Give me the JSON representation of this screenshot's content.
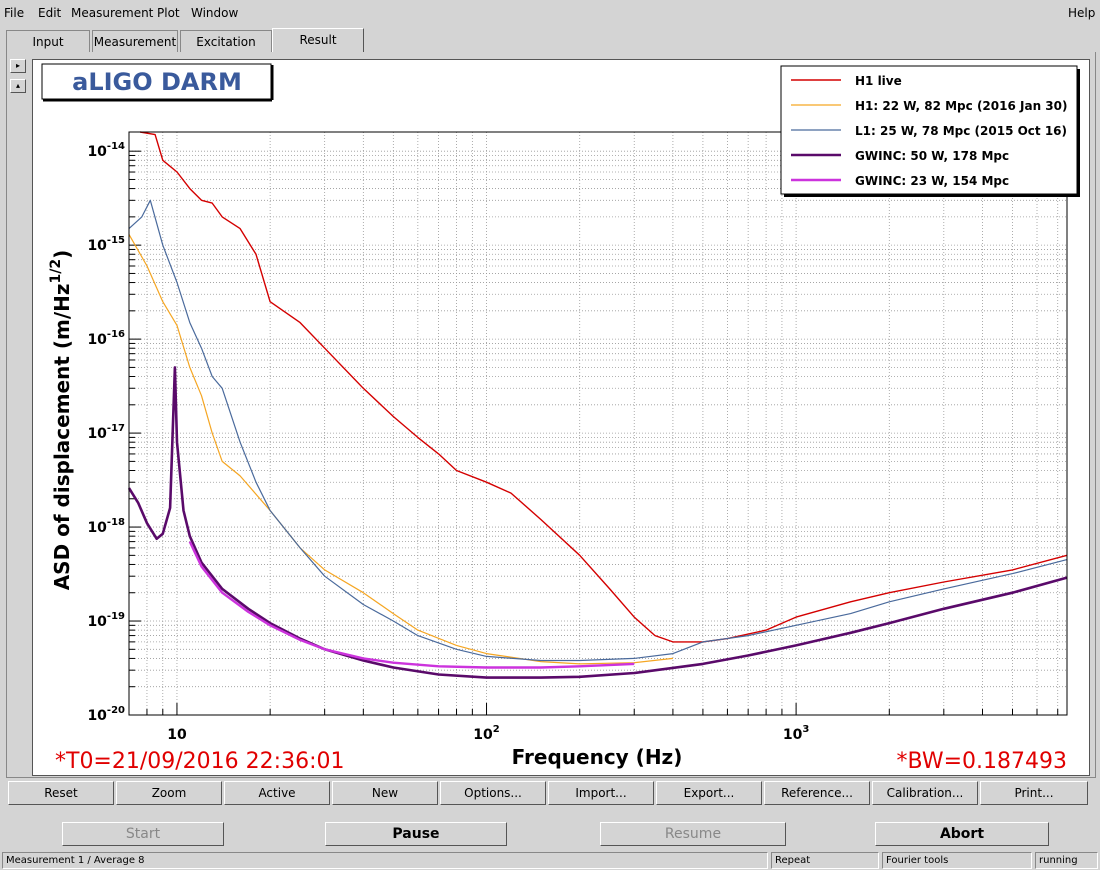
{
  "menu": {
    "file": "File",
    "edit": "Edit",
    "measurement": "Measurement",
    "plot": "Plot",
    "window": "Window",
    "help": "Help"
  },
  "tabs": [
    "Input",
    "Measurement",
    "Excitation",
    "Result"
  ],
  "active_tab": "Result",
  "plot_title": "aLIGO DARM",
  "toolbar": [
    "Reset",
    "Zoom",
    "Active",
    "New",
    "Options...",
    "Import...",
    "Export...",
    "Reference...",
    "Calibration...",
    "Print..."
  ],
  "controls": {
    "start": "Start",
    "pause": "Pause",
    "resume": "Resume",
    "abort": "Abort"
  },
  "status": {
    "left": "Measurement 1 / Average 8",
    "repeat": "Repeat",
    "fourier": "Fourier tools",
    "state": "running"
  },
  "chart_data": {
    "type": "line",
    "xlabel": "Frequency (Hz)",
    "ylabel": "ASD of displacement (m/Hz^1/2)",
    "xscale": "log",
    "yscale": "log",
    "xlim": [
      7,
      7500
    ],
    "ylim": [
      1e-20,
      1.6e-14
    ],
    "x_ticks": [
      "10",
      "10^2",
      "10^3"
    ],
    "y_ticks": [
      "10^-14",
      "10^-15",
      "10^-16",
      "10^-17",
      "10^-18",
      "10^-19",
      "10^-20"
    ],
    "grid": true,
    "legend_position": "top-right",
    "annotations": {
      "t0": "*T0=21/09/2016 22:36:01",
      "bw": "*BW=0.187493"
    },
    "series": [
      {
        "name": "H1 live",
        "color": "#d40000",
        "width": 1.4,
        "points": [
          [
            7.6,
            1.6e-14
          ],
          [
            8.5,
            1.5e-14
          ],
          [
            9,
            8e-15
          ],
          [
            10,
            6e-15
          ],
          [
            11,
            4e-15
          ],
          [
            12,
            3e-15
          ],
          [
            13,
            2.8e-15
          ],
          [
            14,
            2e-15
          ],
          [
            16,
            1.5e-15
          ],
          [
            18,
            8e-16
          ],
          [
            20,
            2.5e-16
          ],
          [
            25,
            1.5e-16
          ],
          [
            30,
            8e-17
          ],
          [
            40,
            3e-17
          ],
          [
            50,
            1.5e-17
          ],
          [
            60,
            9e-18
          ],
          [
            70,
            6e-18
          ],
          [
            80,
            4e-18
          ],
          [
            100,
            3e-18
          ],
          [
            120,
            2.3e-18
          ],
          [
            150,
            1.2e-18
          ],
          [
            200,
            5e-19
          ],
          [
            250,
            2.2e-19
          ],
          [
            300,
            1.1e-19
          ],
          [
            350,
            7e-20
          ],
          [
            400,
            6e-20
          ],
          [
            500,
            6e-20
          ],
          [
            600,
            6.5e-20
          ],
          [
            800,
            8e-20
          ],
          [
            1000,
            1.1e-19
          ],
          [
            1500,
            1.6e-19
          ],
          [
            2000,
            2e-19
          ],
          [
            3000,
            2.6e-19
          ],
          [
            5000,
            3.5e-19
          ],
          [
            7500,
            5e-19
          ]
        ]
      },
      {
        "name": "H1: 22 W, 82 Mpc (2016 Jan 30)",
        "color": "#f5a623",
        "width": 1.2,
        "points": [
          [
            7,
            1.3e-15
          ],
          [
            8,
            6e-16
          ],
          [
            9,
            2.5e-16
          ],
          [
            10,
            1.4e-16
          ],
          [
            11,
            5e-17
          ],
          [
            12,
            2.5e-17
          ],
          [
            13,
            1e-17
          ],
          [
            14,
            5e-18
          ],
          [
            16,
            3.5e-18
          ],
          [
            20,
            1.5e-18
          ],
          [
            25,
            6e-19
          ],
          [
            30,
            3.5e-19
          ],
          [
            40,
            2e-19
          ],
          [
            50,
            1.2e-19
          ],
          [
            60,
            8e-20
          ],
          [
            80,
            5.5e-20
          ],
          [
            100,
            4.5e-20
          ],
          [
            150,
            3.7e-20
          ],
          [
            200,
            3.5e-20
          ],
          [
            300,
            3.6e-20
          ],
          [
            400,
            4e-20
          ]
        ]
      },
      {
        "name": "L1: 25 W, 78 Mpc (2015 Oct 16)",
        "color": "#4a6a9c",
        "width": 1.2,
        "points": [
          [
            7,
            1.5e-15
          ],
          [
            7.7,
            2e-15
          ],
          [
            8.2,
            3e-15
          ],
          [
            9,
            1e-15
          ],
          [
            10,
            4e-16
          ],
          [
            11,
            1.5e-16
          ],
          [
            12,
            8e-17
          ],
          [
            13,
            4e-17
          ],
          [
            14,
            3e-17
          ],
          [
            16,
            8e-18
          ],
          [
            18,
            3e-18
          ],
          [
            20,
            1.5e-18
          ],
          [
            25,
            6e-19
          ],
          [
            30,
            3e-19
          ],
          [
            40,
            1.5e-19
          ],
          [
            50,
            1e-19
          ],
          [
            60,
            7e-20
          ],
          [
            80,
            5e-20
          ],
          [
            100,
            4.2e-20
          ],
          [
            150,
            3.8e-20
          ],
          [
            200,
            3.8e-20
          ],
          [
            300,
            4e-20
          ],
          [
            400,
            4.5e-20
          ],
          [
            500,
            6e-20
          ],
          [
            700,
            7e-20
          ],
          [
            1000,
            9e-20
          ],
          [
            1500,
            1.2e-19
          ],
          [
            2000,
            1.6e-19
          ],
          [
            3000,
            2.2e-19
          ],
          [
            5000,
            3.2e-19
          ],
          [
            7500,
            4.5e-19
          ]
        ]
      },
      {
        "name": "GWINC: 50 W, 178 Mpc",
        "color": "#5a0a6a",
        "width": 2.6,
        "points": [
          [
            7,
            2.6e-18
          ],
          [
            7.5,
            1.8e-18
          ],
          [
            8,
            1.1e-18
          ],
          [
            8.6,
            7.5e-19
          ],
          [
            9,
            8.5e-19
          ],
          [
            9.5,
            1.6e-18
          ],
          [
            9.85,
            5e-17
          ],
          [
            10,
            8e-18
          ],
          [
            10.5,
            1.5e-18
          ],
          [
            11,
            8e-19
          ],
          [
            12,
            4.2e-19
          ],
          [
            14,
            2.2e-19
          ],
          [
            17,
            1.35e-19
          ],
          [
            20,
            9.5e-20
          ],
          [
            25,
            6.5e-20
          ],
          [
            30,
            5e-20
          ],
          [
            40,
            3.8e-20
          ],
          [
            50,
            3.2e-20
          ],
          [
            70,
            2.7e-20
          ],
          [
            100,
            2.5e-20
          ],
          [
            150,
            2.5e-20
          ],
          [
            200,
            2.55e-20
          ],
          [
            300,
            2.8e-20
          ],
          [
            500,
            3.5e-20
          ],
          [
            700,
            4.3e-20
          ],
          [
            1000,
            5.5e-20
          ],
          [
            1500,
            7.5e-20
          ],
          [
            2000,
            9.5e-20
          ],
          [
            3000,
            1.35e-19
          ],
          [
            5000,
            2e-19
          ],
          [
            7500,
            2.9e-19
          ]
        ]
      },
      {
        "name": "GWINC: 23 W, 154 Mpc",
        "color": "#cc33dd",
        "width": 2.4,
        "points": [
          [
            11,
            7e-19
          ],
          [
            12,
            3.8e-19
          ],
          [
            14,
            2e-19
          ],
          [
            17,
            1.25e-19
          ],
          [
            20,
            9e-20
          ],
          [
            25,
            6.3e-20
          ],
          [
            30,
            5e-20
          ],
          [
            40,
            4e-20
          ],
          [
            50,
            3.6e-20
          ],
          [
            70,
            3.3e-20
          ],
          [
            100,
            3.2e-20
          ],
          [
            150,
            3.2e-20
          ],
          [
            200,
            3.3e-20
          ],
          [
            300,
            3.5e-20
          ]
        ]
      }
    ]
  }
}
